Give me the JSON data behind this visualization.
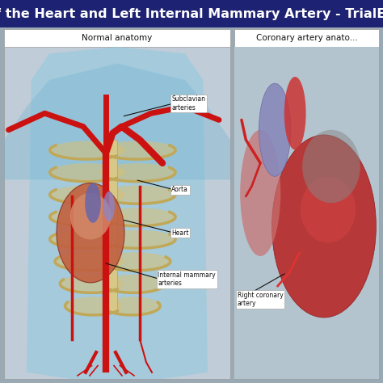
{
  "title_text": "Anatomy of the Heart and Left Internal Mammary Artery - TrialExhibits Inc.",
  "header_bg": "#1e2272",
  "header_text_color": "#ffffff",
  "header_fontsize": 11.5,
  "outer_bg": "#9aaab5",
  "left_panel_bg": "#c0cdd8",
  "right_panel_bg": "#b8c8d4",
  "left_title": "Normal anatomy",
  "right_title": "Coronary artery anato...",
  "panel_title_bg": "#ffffff",
  "panel_title_color": "#111111",
  "panel_border_color": "#999999",
  "label_fontsize": 5.5,
  "label_box_color": "#ffffff",
  "label_text_color": "#111111"
}
